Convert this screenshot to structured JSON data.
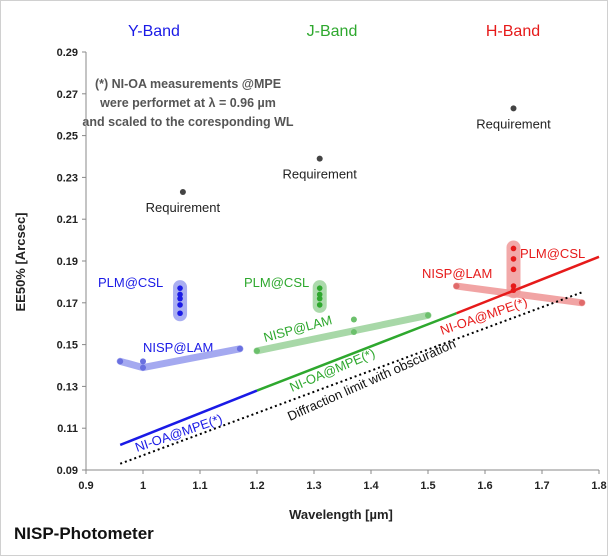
{
  "title": "NISP-Photometer",
  "note": {
    "lines": [
      "(*) NI-OA measurements @MPE",
      "were performet at λ = 0.96 µm",
      "and scaled to the coresponding WL"
    ]
  },
  "colors": {
    "Y": "#1a1ae6",
    "J": "#2ea82e",
    "H": "#e61a1a",
    "Y_light": "#9aa0ee",
    "J_light": "#9ed49e",
    "H_light": "#f09a9a",
    "requirement": "#444444",
    "diffraction": "#000000"
  },
  "chart_data": {
    "type": "scatter",
    "xlabel": "Wavelength [µm]",
    "ylabel": "EE50% [Arcsec]",
    "xlim": [
      0.9,
      1.8
    ],
    "ylim": [
      0.09,
      0.29
    ],
    "xticks": [
      "0.9",
      "1",
      "1.1",
      "1.2",
      "1.3",
      "1.4",
      "1.5",
      "1.6",
      "1.7",
      "1.8"
    ],
    "yticks": [
      "0.09",
      "0.11",
      "0.13",
      "0.15",
      "0.17",
      "0.19",
      "0.21",
      "0.23",
      "0.25",
      "0.27",
      "0.29"
    ],
    "grid": false,
    "bands": [
      {
        "label": "Y-Band",
        "x": 1.0,
        "color_key": "Y"
      },
      {
        "label": "J-Band",
        "x": 1.3,
        "color_key": "J"
      },
      {
        "label": "H-Band",
        "x": 1.62,
        "color_key": "H"
      }
    ],
    "requirements": [
      {
        "label": "Requirement",
        "x": 1.07,
        "y": 0.223
      },
      {
        "label": "Requirement",
        "x": 1.31,
        "y": 0.239
      },
      {
        "label": "Requirement",
        "x": 1.65,
        "y": 0.263
      }
    ],
    "series": [
      {
        "name": "NI-OA@MPE(*)",
        "type": "line",
        "segments": [
          {
            "band": "Y",
            "x": [
              0.96,
              1.2
            ],
            "y": [
              0.102,
              0.128
            ]
          },
          {
            "band": "J",
            "x": [
              1.2,
              1.55
            ],
            "y": [
              0.128,
              0.165
            ]
          },
          {
            "band": "H",
            "x": [
              1.55,
              1.8
            ],
            "y": [
              0.165,
              0.192
            ]
          }
        ]
      },
      {
        "name": "Diffraction limit with obscuration",
        "type": "dotted",
        "x": [
          0.96,
          1.77
        ],
        "y": [
          0.093,
          0.175
        ]
      },
      {
        "name": "NISP@LAM",
        "type": "thick-line",
        "segments": [
          {
            "band": "Y",
            "x": [
              0.96,
              1.0,
              1.17
            ],
            "y": [
              0.142,
              0.139,
              0.148
            ]
          },
          {
            "band": "J",
            "x": [
              1.2,
              1.5
            ],
            "y": [
              0.147,
              0.164
            ]
          },
          {
            "band": "H",
            "x": [
              1.55,
              1.77
            ],
            "y": [
              0.178,
              0.17
            ]
          }
        ],
        "points": [
          {
            "band": "Y",
            "x": 0.96,
            "y": 0.142
          },
          {
            "band": "Y",
            "x": 1.0,
            "y": 0.139
          },
          {
            "band": "Y",
            "x": 1.0,
            "y": 0.142
          },
          {
            "band": "Y",
            "x": 1.17,
            "y": 0.148
          },
          {
            "band": "J",
            "x": 1.2,
            "y": 0.147
          },
          {
            "band": "J",
            "x": 1.37,
            "y": 0.156
          },
          {
            "band": "J",
            "x": 1.37,
            "y": 0.162
          },
          {
            "band": "J",
            "x": 1.5,
            "y": 0.164
          },
          {
            "band": "H",
            "x": 1.55,
            "y": 0.178
          },
          {
            "band": "H",
            "x": 1.77,
            "y": 0.17
          }
        ]
      },
      {
        "name": "PLM@CSL",
        "type": "points",
        "groups": [
          {
            "band": "Y",
            "x": 1.065,
            "y": [
              0.165,
              0.169,
              0.172,
              0.174,
              0.177
            ]
          },
          {
            "band": "J",
            "x": 1.31,
            "y": [
              0.169,
              0.172,
              0.174,
              0.177
            ]
          },
          {
            "band": "H",
            "x": 1.65,
            "y": [
              0.176,
              0.178,
              0.186,
              0.191,
              0.196
            ]
          }
        ]
      }
    ],
    "labels": [
      {
        "text": "PLM@CSL",
        "band": "Y"
      },
      {
        "text": "NISP@LAM",
        "band": "Y"
      },
      {
        "text": "NI-OA@MPE(*)",
        "band": "Y"
      },
      {
        "text": "PLM@CSL",
        "band": "J"
      },
      {
        "text": "NISP@LAM",
        "band": "J"
      },
      {
        "text": "NI-OA@MPE(*)",
        "band": "J"
      },
      {
        "text": "NISP@LAM",
        "band": "H"
      },
      {
        "text": "PLM@CSL",
        "band": "H"
      },
      {
        "text": "NI-OA@MPE(*)",
        "band": "H"
      },
      {
        "text": "Diffraction limit with obscuration",
        "band": "none"
      }
    ]
  }
}
